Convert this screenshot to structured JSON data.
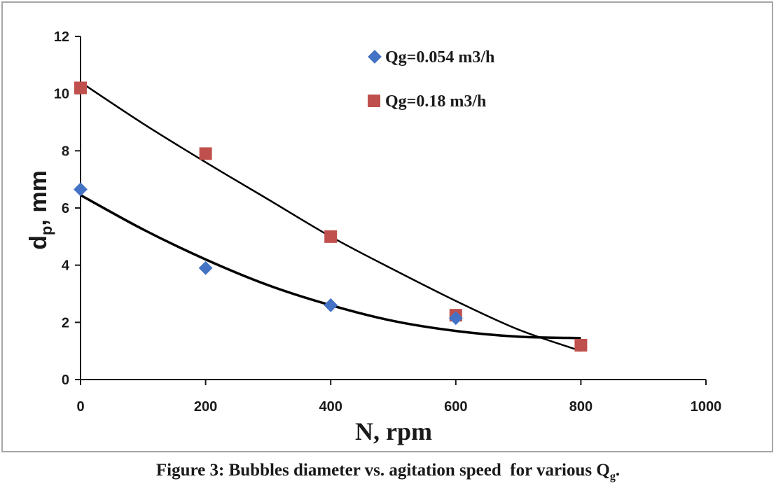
{
  "chart_data": {
    "type": "scatter",
    "xlabel": "N, rpm",
    "ylabel_main": "d",
    "ylabel_sub": "p",
    "ylabel_rest": ", mm",
    "xlim": [
      0,
      1000
    ],
    "ylim": [
      0,
      12
    ],
    "xticks": [
      0,
      200,
      400,
      600,
      800,
      1000
    ],
    "yticks": [
      0,
      2,
      4,
      6,
      8,
      10,
      12
    ],
    "grid": false,
    "legend_position": "top-right",
    "series": [
      {
        "name": "Qg=0.054 m3/h",
        "marker": "diamond",
        "color": "#4472c4",
        "x": [
          0,
          200,
          400,
          600
        ],
        "y": [
          6.65,
          3.9,
          2.6,
          2.15
        ],
        "trend": {
          "type": "poly2",
          "x": [
            0,
            100,
            200,
            300,
            400,
            500,
            600,
            700,
            800
          ],
          "y": [
            6.45,
            5.25,
            4.2,
            3.3,
            2.6,
            2.05,
            1.7,
            1.5,
            1.45
          ],
          "color": "#000000"
        }
      },
      {
        "name": "Qg=0.18 m3/h",
        "marker": "square",
        "color": "#c0504d",
        "x": [
          0,
          200,
          400,
          600,
          800
        ],
        "y": [
          10.2,
          7.9,
          5.0,
          2.25,
          1.2
        ],
        "trend": {
          "type": "poly2",
          "x": [
            0,
            100,
            200,
            300,
            400,
            500,
            600,
            700,
            800
          ],
          "y": [
            10.4,
            8.95,
            7.6,
            6.3,
            5.0,
            3.85,
            2.75,
            1.75,
            1.0
          ],
          "color": "#000000"
        }
      }
    ]
  },
  "caption": {
    "main": "Figure 3: Bubbles diameter vs. agitation speed  for various Q",
    "sub": "g",
    "end": "."
  }
}
